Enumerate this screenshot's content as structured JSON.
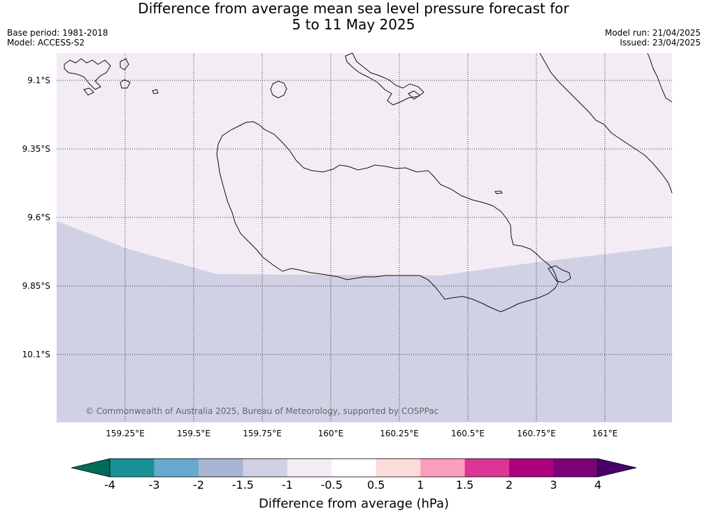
{
  "title": {
    "line1": "Difference from average mean sea level pressure forecast for",
    "line2": "5 to 11 May 2025"
  },
  "meta": {
    "base_period": "Base period: 1981-2018",
    "model": "Model: ACCESS-S2",
    "model_run": "Model run: 21/04/2025",
    "issued": "Issued: 23/04/2025"
  },
  "map": {
    "lat_labels": [
      "9.1°S",
      "9.35°S",
      "9.6°S",
      "9.85°S",
      "10.1°S"
    ],
    "lon_labels": [
      "159.25°E",
      "159.5°E",
      "159.75°E",
      "160°E",
      "160.25°E",
      "160.5°E",
      "160.75°E",
      "161°E"
    ],
    "copyright": "© Commonwealth of Australia 2025, Bureau of Meteorology, supported by COSPPac",
    "fill_colors": {
      "upper_band": "#f3ecf5",
      "lower_band": "#d0d1e4"
    }
  },
  "colorbar": {
    "label": "Difference from average (hPa)",
    "ticks": [
      "-4",
      "-3",
      "-2",
      "-1.5",
      "-1",
      "-0.5",
      "0.5",
      "1",
      "1.5",
      "2",
      "3",
      "4"
    ],
    "colors": [
      "#1a9097",
      "#67a9cf",
      "#a6b6d3",
      "#d0d1e4",
      "#f3ecf5",
      "#ffffff",
      "#fddcdc",
      "#f99fbd",
      "#dd3497",
      "#ae017e",
      "#7a0177"
    ],
    "extend_low_color": "#016c59",
    "extend_high_color": "#49006a"
  }
}
